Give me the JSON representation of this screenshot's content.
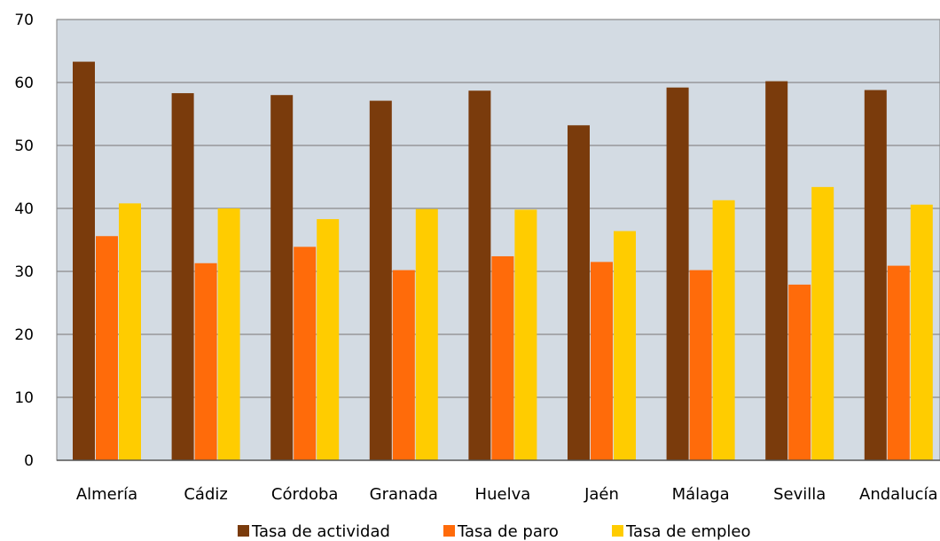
{
  "chart_data": {
    "type": "bar",
    "title": "",
    "xlabel": "",
    "ylabel": "",
    "ylim": [
      0,
      70
    ],
    "yticks": [
      "0",
      "10",
      "20",
      "30",
      "40",
      "50",
      "60",
      "70"
    ],
    "grid": true,
    "legend_position": "bottom",
    "plot_background": "#d3dbe3",
    "categories": [
      "Almería",
      "Cádiz",
      "Córdoba",
      "Granada",
      "Huelva",
      "Jaén",
      "Málaga",
      "Sevilla",
      "Andalucía"
    ],
    "series": [
      {
        "name": "Tasa de actividad",
        "color": "#7a3b0c",
        "values": [
          63.3,
          58.3,
          58.0,
          57.1,
          58.7,
          53.2,
          59.2,
          60.2,
          58.8
        ]
      },
      {
        "name": "Tasa de paro",
        "color": "#ff6b0a",
        "values": [
          35.6,
          31.3,
          33.9,
          30.2,
          32.4,
          31.5,
          30.2,
          27.9,
          30.9
        ]
      },
      {
        "name": "Tasa de empleo",
        "color": "#ffcc00",
        "values": [
          40.8,
          40.0,
          38.3,
          39.9,
          39.8,
          36.4,
          41.3,
          43.4,
          40.6
        ]
      }
    ]
  }
}
